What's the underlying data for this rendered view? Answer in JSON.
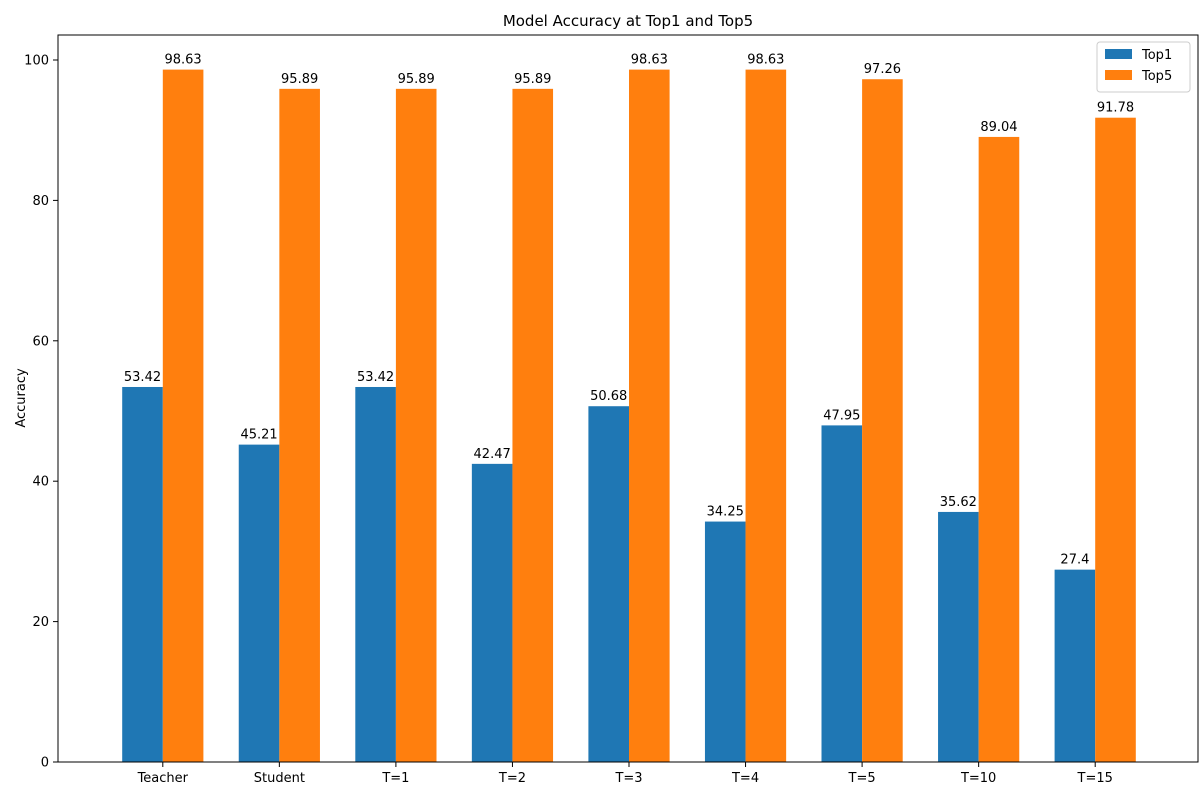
{
  "chart_data": {
    "type": "bar",
    "title": "Model Accuracy at Top1 and Top5",
    "xlabel": "",
    "ylabel": "Accuracy",
    "categories": [
      "Teacher",
      "Student",
      "T=1",
      "T=2",
      "T=3",
      "T=4",
      "T=5",
      "T=10",
      "T=15"
    ],
    "series": [
      {
        "name": "Top1",
        "color": "#1f77b4",
        "values": [
          53.42,
          45.21,
          53.42,
          42.47,
          50.68,
          34.25,
          47.95,
          35.62,
          27.4
        ]
      },
      {
        "name": "Top5",
        "color": "#ff7f0e",
        "values": [
          98.63,
          95.89,
          95.89,
          95.89,
          98.63,
          98.63,
          97.26,
          89.04,
          91.78
        ]
      }
    ],
    "yticks": [
      0,
      20,
      40,
      60,
      80,
      100
    ],
    "ylim": [
      0,
      103.56
    ],
    "grid": false,
    "legend_position": "top-right",
    "data_labels": true
  }
}
